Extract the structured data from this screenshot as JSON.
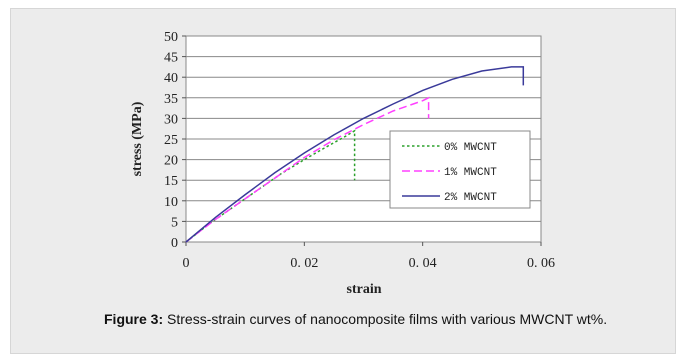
{
  "chart_data": {
    "type": "line",
    "xlabel": "strain",
    "ylabel": "stress (MPa)",
    "xlim": [
      0,
      0.06
    ],
    "ylim": [
      0,
      50
    ],
    "x_ticks": [
      "0",
      "0. 02",
      "0. 04",
      "0. 06"
    ],
    "x_tick_values": [
      0,
      0.02,
      0.04,
      0.06
    ],
    "y_ticks": [
      "0",
      "5",
      "10",
      "15",
      "20",
      "25",
      "30",
      "35",
      "40",
      "45",
      "50"
    ],
    "y_tick_values": [
      0,
      5,
      10,
      15,
      20,
      25,
      30,
      35,
      40,
      45,
      50
    ],
    "grid": "horizontal",
    "legend_position": "center-right",
    "series": [
      {
        "name": "0% MWCNT",
        "color": "#2ca02c",
        "dash": "dotted",
        "x": [
          0,
          0.004,
          0.008,
          0.012,
          0.016,
          0.02,
          0.024,
          0.027,
          0.0285,
          0.0285
        ],
        "y": [
          0,
          4.5,
          8.5,
          12.5,
          16.5,
          20,
          23.3,
          25.7,
          27,
          15
        ]
      },
      {
        "name": "1% MWCNT",
        "color": "#ff40ff",
        "dash": "dashed",
        "x": [
          0,
          0.005,
          0.01,
          0.015,
          0.02,
          0.025,
          0.03,
          0.035,
          0.04,
          0.041,
          0.041
        ],
        "y": [
          0,
          5.5,
          10.5,
          15.5,
          20.5,
          24.8,
          28.5,
          31.8,
          34.3,
          35,
          30
        ]
      },
      {
        "name": "2% MWCNT",
        "color": "#3a3a9a",
        "dash": "solid",
        "x": [
          0,
          0.005,
          0.01,
          0.015,
          0.02,
          0.025,
          0.03,
          0.035,
          0.04,
          0.045,
          0.05,
          0.055,
          0.057,
          0.057
        ],
        "y": [
          0,
          6,
          11.5,
          16.8,
          21.6,
          26,
          30,
          33.5,
          36.8,
          39.5,
          41.5,
          42.5,
          42.5,
          38
        ]
      }
    ]
  },
  "caption": {
    "label": "Figure 3:",
    "text": " Stress-strain curves of nanocomposite films with various MWCNT wt%."
  }
}
